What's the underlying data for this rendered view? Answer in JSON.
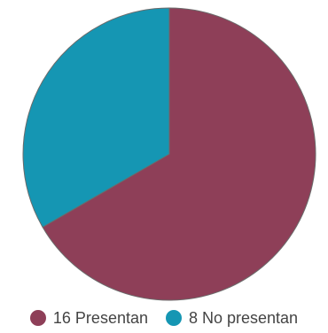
{
  "chart_data": {
    "type": "pie",
    "title": "",
    "legend_position": "bottom",
    "slices": [
      {
        "label": "16 Presentan",
        "value": 16,
        "color": "#8e3f58"
      },
      {
        "label": "8 No presentan",
        "value": 8,
        "color": "#1596b3"
      }
    ]
  }
}
